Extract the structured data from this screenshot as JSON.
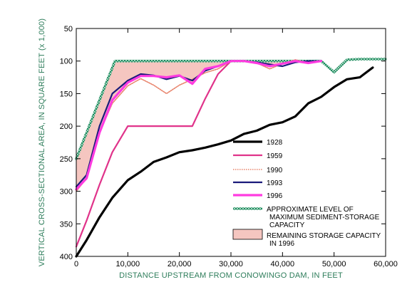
{
  "chart_data": {
    "type": "line",
    "xlabel": "DISTANCE UPSTREAM FROM CONOWINGO DAM, IN FEET",
    "ylabel": "VERTICAL CROSS-SECTIONAL AREA, IN SQUARE FEET (x 1,000)",
    "xlim": [
      0,
      60000
    ],
    "ylim": [
      50,
      400
    ],
    "y_inverted": true,
    "x_ticks": [
      0,
      10000,
      20000,
      30000,
      40000,
      50000,
      60000
    ],
    "x_tick_labels": [
      "0",
      "10,000",
      "20,000",
      "30,000",
      "40,000",
      "50,000",
      "60,000"
    ],
    "y_ticks": [
      50,
      100,
      150,
      200,
      250,
      300,
      350,
      400
    ],
    "y_tick_labels": [
      "50",
      "100",
      "150",
      "200",
      "250",
      "300",
      "350",
      "400"
    ],
    "grid": false,
    "legend_position": "lower-right",
    "series": [
      {
        "name": "1928",
        "color": "#000000",
        "style": "solid-thick",
        "x": [
          0,
          2000,
          4500,
          7000,
          10000,
          12500,
          15000,
          17500,
          20000,
          22500,
          25000,
          27500,
          30000,
          32500,
          35000,
          37500,
          40000,
          42500,
          45000,
          47500,
          50000,
          52500,
          55000,
          57500
        ],
        "y": [
          400,
          375,
          340,
          310,
          283,
          270,
          255,
          248,
          240,
          237,
          233,
          228,
          222,
          212,
          207,
          198,
          194,
          185,
          165,
          155,
          140,
          128,
          125,
          110
        ]
      },
      {
        "name": "1959",
        "color": "#e0338a",
        "style": "solid",
        "x": [
          0,
          2000,
          4500,
          7000,
          10000,
          12500,
          15000,
          17500,
          20000,
          22500,
          25000,
          27500,
          30000
        ],
        "y": [
          385,
          345,
          290,
          240,
          200,
          200,
          200,
          200,
          200,
          200,
          158,
          120,
          100
        ]
      },
      {
        "name": "1990",
        "color": "#e8836b",
        "style": "dotted",
        "x": [
          0,
          2000,
          4500,
          7000,
          10000,
          12500,
          15000,
          17500,
          20000,
          22500,
          25000,
          27500,
          30000,
          32500,
          35000,
          37500,
          40000,
          42500,
          45000,
          47500
        ],
        "y": [
          300,
          280,
          210,
          165,
          138,
          127,
          137,
          150,
          137,
          128,
          118,
          112,
          100,
          100,
          103,
          112,
          104,
          98,
          103,
          100
        ]
      },
      {
        "name": "1993",
        "color": "#1a1a7a",
        "style": "solid",
        "x": [
          0,
          2000,
          4500,
          7000,
          10000,
          12500,
          15000,
          17500,
          20000,
          22500,
          25000,
          27500,
          30000,
          32500,
          35000,
          37500,
          40000,
          42500,
          45000,
          47500
        ],
        "y": [
          293,
          275,
          200,
          150,
          130,
          120,
          122,
          128,
          123,
          130,
          115,
          108,
          100,
          100,
          102,
          105,
          108,
          102,
          100,
          100
        ]
      },
      {
        "name": "1996",
        "color": "#ff3be0",
        "style": "solid-thick",
        "x": [
          0,
          2000,
          4500,
          7000,
          10000,
          12500,
          15000,
          17500,
          20000,
          22500,
          25000,
          27500,
          30000,
          32500,
          35000,
          37500,
          40000,
          42500,
          45000,
          47500
        ],
        "y": [
          297,
          280,
          210,
          160,
          133,
          123,
          123,
          125,
          122,
          135,
          112,
          108,
          100,
          100,
          103,
          108,
          104,
          100,
          103,
          100
        ]
      },
      {
        "name": "APPROXIMATE LEVEL OF MAXIMUM SEDIMENT-STORAGE CAPACITY",
        "legend_lines": [
          "APPROXIMATE LEVEL OF",
          "MAXIMUM SEDIMENT-STORAGE",
          "CAPACITY"
        ],
        "color": "#1f8a5e",
        "style": "checkered",
        "x": [
          0,
          7500,
          10000,
          20000,
          30000,
          40000,
          45000,
          47500,
          50000,
          52500,
          55000,
          57500,
          60000
        ],
        "y": [
          250,
          100,
          100,
          100,
          100,
          100,
          100,
          100,
          117,
          98,
          97,
          97,
          97
        ]
      }
    ],
    "shaded_area": {
      "name": "REMAINING STORAGE CAPACITY IN 1996",
      "legend_lines": [
        "REMAINING STORAGE CAPACITY",
        "IN 1996"
      ],
      "color": "#f5c6c0",
      "between": [
        "1996",
        "APPROXIMATE LEVEL OF MAXIMUM SEDIMENT-STORAGE CAPACITY"
      ]
    }
  }
}
